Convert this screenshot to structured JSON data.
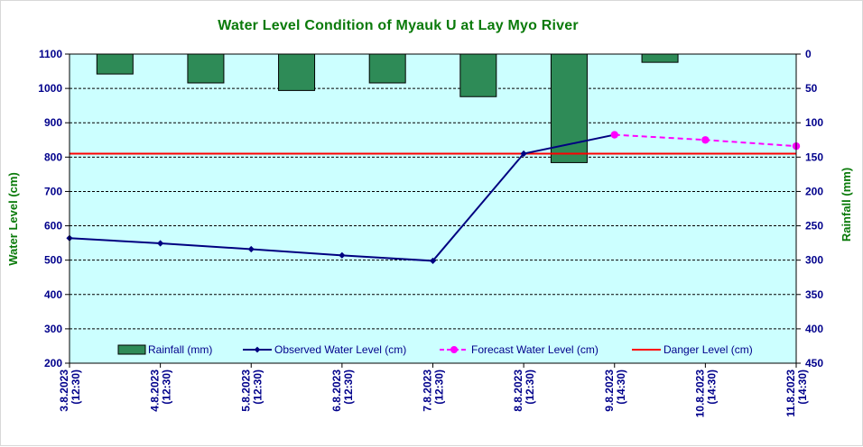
{
  "chart_data": {
    "type": "line",
    "title": "Water Level Condition of Myauk U at Lay Myo River",
    "categories": [
      "3.8.2023 (12:30)",
      "4.8.2023 (12:30)",
      "5.8.2023 (12:30)",
      "6.8.2023 (12:30)",
      "7.8.2023 (12:30)",
      "8.8.2023 (12:30)",
      "9.8.2023 (14:30)",
      "10.8.2023 (14:30)",
      "11.8.2023 (14:30)"
    ],
    "x_labels": [
      {
        "date": "3.8.2023",
        "time": "(12:30)"
      },
      {
        "date": "4.8.2023",
        "time": "(12:30)"
      },
      {
        "date": "5.8.2023",
        "time": "(12:30)"
      },
      {
        "date": "6.8.2023",
        "time": "(12:30)"
      },
      {
        "date": "7.8.2023",
        "time": "(12:30)"
      },
      {
        "date": "8.8.2023",
        "time": "(12:30)"
      },
      {
        "date": "9.8.2023",
        "time": "(14:30)"
      },
      {
        "date": "10.8.2023",
        "time": "(14:30)"
      },
      {
        "date": "11.8.2023",
        "time": "(14:30)"
      }
    ],
    "ylabel": "Water Level (cm)",
    "y2label": "Rainfall (mm)",
    "ylim": [
      200,
      1100
    ],
    "y2lim": [
      0,
      450
    ],
    "y2_inverted": true,
    "y_ticks": [
      200,
      300,
      400,
      500,
      600,
      700,
      800,
      900,
      1000,
      1100
    ],
    "y2_ticks": [
      0,
      50,
      100,
      150,
      200,
      250,
      300,
      350,
      400,
      450
    ],
    "grid": true,
    "legend_placement": "bottom",
    "series": [
      {
        "name": "Rainfall (mm)",
        "kind": "bar",
        "axis": "y2",
        "color": "#2e8b57",
        "values": [
          29,
          42,
          53,
          42,
          62,
          158,
          12,
          null,
          null
        ]
      },
      {
        "name": "Observed Water Level (cm)",
        "kind": "line",
        "axis": "y",
        "color": "#000080",
        "values": [
          564,
          549,
          532,
          514,
          498,
          810,
          865,
          null,
          null
        ]
      },
      {
        "name": "Forecast Water Level (cm)",
        "kind": "dashed-line",
        "axis": "y",
        "color": "#ff00ff",
        "values": [
          null,
          null,
          null,
          null,
          null,
          null,
          865,
          850,
          832
        ]
      },
      {
        "name": "Danger Level (cm)",
        "kind": "hline",
        "axis": "y",
        "color": "#ff0000",
        "value": 810
      }
    ]
  },
  "colors": {
    "plot_background": "#ccffff",
    "title": "#0a7a0a",
    "tick_text": "#00008b",
    "bar_fill": "#2e8b57",
    "observed": "#000080",
    "forecast": "#ff00ff",
    "danger": "#ff0000"
  }
}
